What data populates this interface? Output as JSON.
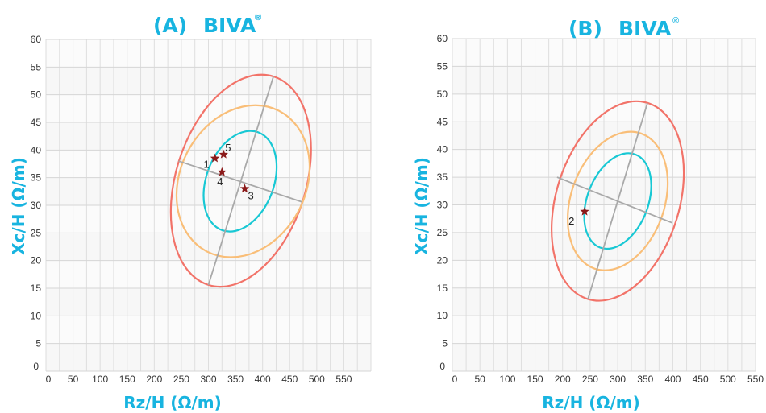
{
  "chart_data": [
    {
      "type": "scatter",
      "panel": "(A)",
      "title": "BIVA",
      "title_mark": "®",
      "xlabel": "Rz/H (Ω/m)",
      "ylabel": "Xc/H (Ω/m)",
      "xlim": [
        0,
        600
      ],
      "ylim": [
        0,
        60
      ],
      "xticks": [
        0,
        50,
        100,
        150,
        200,
        250,
        300,
        350,
        400,
        450,
        500,
        550
      ],
      "yticks": [
        0,
        5,
        10,
        15,
        20,
        25,
        30,
        35,
        40,
        45,
        50,
        55,
        60
      ],
      "grid": true,
      "ellipse_center": [
        365,
        34.4
      ],
      "tolerance_ellipses": [
        {
          "color": "#18c8d4",
          "major_axis": [
            [
              325,
              25.5
            ],
            [
              392,
              43.2
            ]
          ],
          "minor_axis": [
            [
              308,
              37.6
            ],
            [
              413,
              31.0
            ]
          ]
        },
        {
          "color": "#f9be78",
          "major_axis": [
            [
              298,
              21.6
            ],
            [
              430,
              47.1
            ]
          ],
          "minor_axis": [
            [
              258,
              40.0
            ],
            [
              464,
              29.5
            ]
          ]
        },
        {
          "color": "#f27369",
          "major_axis": [
            [
              300,
              15.6
            ],
            [
              420,
              53.3
            ]
          ],
          "minor_axis": [
            [
              245,
              38.0
            ],
            [
              473,
              30.6
            ]
          ]
        }
      ],
      "points": [
        {
          "label": "1",
          "x": 312,
          "y": 38.5
        },
        {
          "label": "5",
          "x": 328,
          "y": 39.2
        },
        {
          "label": "4",
          "x": 325,
          "y": 36.0
        },
        {
          "label": "3",
          "x": 367,
          "y": 33.0
        }
      ],
      "point_color": "#8b1a1a"
    },
    {
      "type": "scatter",
      "panel": "(B)",
      "title": "BIVA",
      "title_mark": "®",
      "xlabel": "Rz/H (Ω/m)",
      "ylabel": "Xc/H (Ω/m)",
      "xlim": [
        0,
        550
      ],
      "ylim": [
        0,
        60
      ],
      "xticks": [
        0,
        50,
        100,
        150,
        200,
        250,
        300,
        350,
        400,
        450,
        500,
        550
      ],
      "yticks": [
        0,
        5,
        10,
        15,
        20,
        25,
        30,
        35,
        40,
        45,
        50,
        55,
        60
      ],
      "grid": true,
      "ellipse_center": [
        300,
        30.7
      ],
      "tolerance_ellipses": [
        {
          "color": "#18c8d4",
          "major_axis": [
            [
              268,
              22.3
            ],
            [
              332,
              39.1
            ]
          ],
          "minor_axis": [
            [
              242,
              33.0
            ],
            [
              345,
              29.0
            ]
          ]
        },
        {
          "color": "#f9be78",
          "major_axis": [
            [
              258,
              18.5
            ],
            [
              342,
              42.9
            ]
          ],
          "minor_axis": [
            [
              218,
              34.0
            ],
            [
              376,
              27.8
            ]
          ]
        },
        {
          "color": "#f27369",
          "major_axis": [
            [
              246,
              13.0
            ],
            [
              354,
              48.4
            ]
          ],
          "minor_axis": [
            [
              190,
              35.0
            ],
            [
              398,
              26.8
            ]
          ]
        }
      ],
      "points": [
        {
          "label": "2",
          "x": 240,
          "y": 28.8
        }
      ],
      "point_color": "#8b1a1a"
    }
  ]
}
